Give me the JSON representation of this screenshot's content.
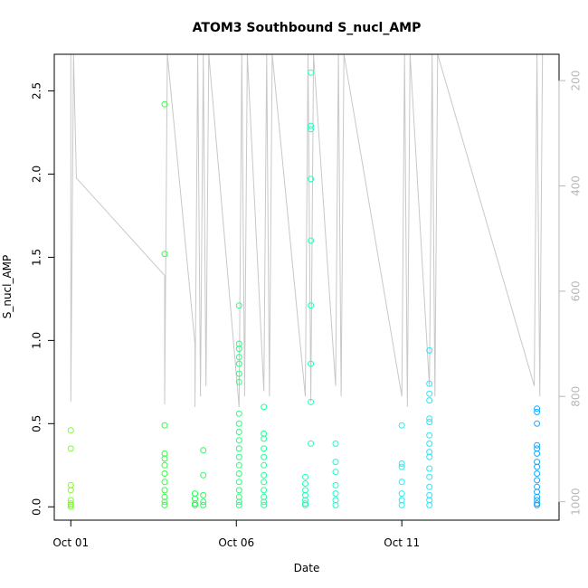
{
  "chart_data": {
    "type": "scatter",
    "title": "ATOM3 Southbound S_nucl_AMP",
    "xlabel": "Date",
    "ylabel": "S_nucl_AMP",
    "x_ticks": [
      {
        "date": "2016-10-01",
        "label": "Oct 01"
      },
      {
        "date": "2016-10-06",
        "label": "Oct 06"
      },
      {
        "date": "2016-10-11",
        "label": "Oct 11"
      }
    ],
    "xlim": [
      "2016-09-30T12:00",
      "2016-10-15T18:00"
    ],
    "ylim": [
      -0.08,
      2.72
    ],
    "y_ticks": [
      0.0,
      0.5,
      1.0,
      1.5,
      2.0,
      2.5
    ],
    "y_tick_labels": [
      "0.0",
      "0.5",
      "1.0",
      "1.5",
      "2.0",
      "2.5"
    ],
    "right_axis": {
      "label": "",
      "reversed": true,
      "ylim": [
        1035,
        150
      ],
      "ticks": [
        200,
        400,
        600,
        800,
        1000
      ],
      "tick_labels": [
        "200",
        "400",
        "600",
        "800",
        "1000"
      ],
      "color": "#b8b8b8"
    },
    "point_style": "open-circle",
    "line_color": "#c8c8c8",
    "color_gradient": [
      "#88ff22",
      "#22ff44",
      "#22ffbb",
      "#22e8ff",
      "#1199ff"
    ],
    "points": [
      {
        "t": "2016-10-01T00:00",
        "y": 0.46
      },
      {
        "t": "2016-10-01T00:00",
        "y": 0.35
      },
      {
        "t": "2016-10-01T00:00",
        "y": 0.13
      },
      {
        "t": "2016-10-01T00:00",
        "y": 0.1
      },
      {
        "t": "2016-10-01T00:00",
        "y": 0.04
      },
      {
        "t": "2016-10-01T00:00",
        "y": 0.02
      },
      {
        "t": "2016-10-01T00:00",
        "y": 0.01
      },
      {
        "t": "2016-10-01T00:00",
        "y": 0.0
      },
      {
        "t": "2016-10-03T20:00",
        "y": 2.42
      },
      {
        "t": "2016-10-03T20:00",
        "y": 1.52
      },
      {
        "t": "2016-10-03T20:00",
        "y": 0.49
      },
      {
        "t": "2016-10-03T20:00",
        "y": 0.32
      },
      {
        "t": "2016-10-03T20:00",
        "y": 0.29
      },
      {
        "t": "2016-10-03T20:00",
        "y": 0.25
      },
      {
        "t": "2016-10-03T20:00",
        "y": 0.2
      },
      {
        "t": "2016-10-03T20:00",
        "y": 0.15
      },
      {
        "t": "2016-10-03T20:00",
        "y": 0.1
      },
      {
        "t": "2016-10-03T20:00",
        "y": 0.06
      },
      {
        "t": "2016-10-03T20:00",
        "y": 0.03
      },
      {
        "t": "2016-10-03T20:00",
        "y": 0.01
      },
      {
        "t": "2016-10-04T18:00",
        "y": 0.08
      },
      {
        "t": "2016-10-04T18:00",
        "y": 0.05
      },
      {
        "t": "2016-10-04T18:00",
        "y": 0.02
      },
      {
        "t": "2016-10-04T18:00",
        "y": 0.01
      },
      {
        "t": "2016-10-05T00:00",
        "y": 0.34
      },
      {
        "t": "2016-10-05T00:00",
        "y": 0.19
      },
      {
        "t": "2016-10-05T00:00",
        "y": 0.07
      },
      {
        "t": "2016-10-05T00:00",
        "y": 0.03
      },
      {
        "t": "2016-10-05T00:00",
        "y": 0.01
      },
      {
        "t": "2016-10-06T02:00",
        "y": 1.21
      },
      {
        "t": "2016-10-06T02:00",
        "y": 0.98
      },
      {
        "t": "2016-10-06T02:00",
        "y": 0.95
      },
      {
        "t": "2016-10-06T02:00",
        "y": 0.9
      },
      {
        "t": "2016-10-06T02:00",
        "y": 0.86
      },
      {
        "t": "2016-10-06T02:00",
        "y": 0.8
      },
      {
        "t": "2016-10-06T02:00",
        "y": 0.75
      },
      {
        "t": "2016-10-06T02:00",
        "y": 0.56
      },
      {
        "t": "2016-10-06T02:00",
        "y": 0.5
      },
      {
        "t": "2016-10-06T02:00",
        "y": 0.45
      },
      {
        "t": "2016-10-06T02:00",
        "y": 0.4
      },
      {
        "t": "2016-10-06T02:00",
        "y": 0.35
      },
      {
        "t": "2016-10-06T02:00",
        "y": 0.3
      },
      {
        "t": "2016-10-06T02:00",
        "y": 0.25
      },
      {
        "t": "2016-10-06T02:00",
        "y": 0.2
      },
      {
        "t": "2016-10-06T02:00",
        "y": 0.15
      },
      {
        "t": "2016-10-06T02:00",
        "y": 0.1
      },
      {
        "t": "2016-10-06T02:00",
        "y": 0.06
      },
      {
        "t": "2016-10-06T02:00",
        "y": 0.03
      },
      {
        "t": "2016-10-06T02:00",
        "y": 0.01
      },
      {
        "t": "2016-10-06T20:00",
        "y": 0.6
      },
      {
        "t": "2016-10-06T20:00",
        "y": 0.44
      },
      {
        "t": "2016-10-06T20:00",
        "y": 0.41
      },
      {
        "t": "2016-10-06T20:00",
        "y": 0.35
      },
      {
        "t": "2016-10-06T20:00",
        "y": 0.3
      },
      {
        "t": "2016-10-06T20:00",
        "y": 0.25
      },
      {
        "t": "2016-10-06T20:00",
        "y": 0.19
      },
      {
        "t": "2016-10-06T20:00",
        "y": 0.15
      },
      {
        "t": "2016-10-06T20:00",
        "y": 0.1
      },
      {
        "t": "2016-10-06T20:00",
        "y": 0.06
      },
      {
        "t": "2016-10-06T20:00",
        "y": 0.03
      },
      {
        "t": "2016-10-06T20:00",
        "y": 0.01
      },
      {
        "t": "2016-10-08T02:00",
        "y": 0.18
      },
      {
        "t": "2016-10-08T02:00",
        "y": 0.14
      },
      {
        "t": "2016-10-08T02:00",
        "y": 0.1
      },
      {
        "t": "2016-10-08T02:00",
        "y": 0.07
      },
      {
        "t": "2016-10-08T02:00",
        "y": 0.04
      },
      {
        "t": "2016-10-08T02:00",
        "y": 0.02
      },
      {
        "t": "2016-10-08T02:00",
        "y": 0.01
      },
      {
        "t": "2016-10-08T06:00",
        "y": 2.61
      },
      {
        "t": "2016-10-08T06:00",
        "y": 2.29
      },
      {
        "t": "2016-10-08T06:00",
        "y": 2.27
      },
      {
        "t": "2016-10-08T06:00",
        "y": 1.97
      },
      {
        "t": "2016-10-08T06:00",
        "y": 1.6
      },
      {
        "t": "2016-10-08T06:00",
        "y": 1.21
      },
      {
        "t": "2016-10-08T06:00",
        "y": 0.86
      },
      {
        "t": "2016-10-08T06:00",
        "y": 0.63
      },
      {
        "t": "2016-10-08T06:00",
        "y": 0.38
      },
      {
        "t": "2016-10-09T00:00",
        "y": 0.38
      },
      {
        "t": "2016-10-09T00:00",
        "y": 0.27
      },
      {
        "t": "2016-10-09T00:00",
        "y": 0.21
      },
      {
        "t": "2016-10-09T00:00",
        "y": 0.13
      },
      {
        "t": "2016-10-09T00:00",
        "y": 0.08
      },
      {
        "t": "2016-10-09T00:00",
        "y": 0.04
      },
      {
        "t": "2016-10-09T00:00",
        "y": 0.01
      },
      {
        "t": "2016-10-11T00:00",
        "y": 0.49
      },
      {
        "t": "2016-10-11T00:00",
        "y": 0.26
      },
      {
        "t": "2016-10-11T00:00",
        "y": 0.24
      },
      {
        "t": "2016-10-11T00:00",
        "y": 0.15
      },
      {
        "t": "2016-10-11T00:00",
        "y": 0.08
      },
      {
        "t": "2016-10-11T00:00",
        "y": 0.04
      },
      {
        "t": "2016-10-11T00:00",
        "y": 0.01
      },
      {
        "t": "2016-10-11T20:00",
        "y": 0.94
      },
      {
        "t": "2016-10-11T20:00",
        "y": 0.74
      },
      {
        "t": "2016-10-11T20:00",
        "y": 0.68
      },
      {
        "t": "2016-10-11T20:00",
        "y": 0.64
      },
      {
        "t": "2016-10-11T20:00",
        "y": 0.53
      },
      {
        "t": "2016-10-11T20:00",
        "y": 0.51
      },
      {
        "t": "2016-10-11T20:00",
        "y": 0.43
      },
      {
        "t": "2016-10-11T20:00",
        "y": 0.38
      },
      {
        "t": "2016-10-11T20:00",
        "y": 0.33
      },
      {
        "t": "2016-10-11T20:00",
        "y": 0.3
      },
      {
        "t": "2016-10-11T20:00",
        "y": 0.23
      },
      {
        "t": "2016-10-11T20:00",
        "y": 0.18
      },
      {
        "t": "2016-10-11T20:00",
        "y": 0.12
      },
      {
        "t": "2016-10-11T20:00",
        "y": 0.07
      },
      {
        "t": "2016-10-11T20:00",
        "y": 0.04
      },
      {
        "t": "2016-10-11T20:00",
        "y": 0.01
      },
      {
        "t": "2016-10-15T02:00",
        "y": 0.59
      },
      {
        "t": "2016-10-15T02:00",
        "y": 0.57
      },
      {
        "t": "2016-10-15T02:00",
        "y": 0.5
      },
      {
        "t": "2016-10-15T02:00",
        "y": 0.37
      },
      {
        "t": "2016-10-15T02:00",
        "y": 0.35
      },
      {
        "t": "2016-10-15T02:00",
        "y": 0.32
      },
      {
        "t": "2016-10-15T02:00",
        "y": 0.27
      },
      {
        "t": "2016-10-15T02:00",
        "y": 0.24
      },
      {
        "t": "2016-10-15T02:00",
        "y": 0.2
      },
      {
        "t": "2016-10-15T02:00",
        "y": 0.16
      },
      {
        "t": "2016-10-15T02:00",
        "y": 0.12
      },
      {
        "t": "2016-10-15T02:00",
        "y": 0.09
      },
      {
        "t": "2016-10-15T02:00",
        "y": 0.06
      },
      {
        "t": "2016-10-15T02:00",
        "y": 0.04
      },
      {
        "t": "2016-10-15T02:00",
        "y": 0.02
      },
      {
        "t": "2016-10-15T02:00",
        "y": 0.01
      }
    ],
    "depth_trace": [
      {
        "t": "2016-10-01T00:00",
        "d": 150
      },
      {
        "t": "2016-10-01T00:00",
        "d": 810
      },
      {
        "t": "2016-10-01T02:00",
        "d": 150
      },
      {
        "t": "2016-10-01T04:00",
        "d": 385
      },
      {
        "t": "2016-10-03T20:00",
        "d": 570
      },
      {
        "t": "2016-10-03T20:00",
        "d": 815
      },
      {
        "t": "2016-10-03T22:00",
        "d": 150
      },
      {
        "t": "2016-10-04T18:00",
        "d": 700
      },
      {
        "t": "2016-10-04T18:00",
        "d": 820
      },
      {
        "t": "2016-10-04T20:00",
        "d": 150
      },
      {
        "t": "2016-10-04T22:00",
        "d": 800
      },
      {
        "t": "2016-10-05T00:00",
        "d": 150
      },
      {
        "t": "2016-10-05T02:00",
        "d": 780
      },
      {
        "t": "2016-10-05T04:00",
        "d": 150
      },
      {
        "t": "2016-10-06T02:00",
        "d": 820
      },
      {
        "t": "2016-10-06T04:00",
        "d": 150
      },
      {
        "t": "2016-10-06T06:00",
        "d": 800
      },
      {
        "t": "2016-10-06T08:00",
        "d": 150
      },
      {
        "t": "2016-10-06T20:00",
        "d": 790
      },
      {
        "t": "2016-10-06T22:00",
        "d": 150
      },
      {
        "t": "2016-10-07T00:00",
        "d": 800
      },
      {
        "t": "2016-10-07T02:00",
        "d": 150
      },
      {
        "t": "2016-10-08T02:00",
        "d": 800
      },
      {
        "t": "2016-10-08T04:00",
        "d": 150
      },
      {
        "t": "2016-10-08T06:00",
        "d": 810
      },
      {
        "t": "2016-10-08T08:00",
        "d": 150
      },
      {
        "t": "2016-10-09T00:00",
        "d": 780
      },
      {
        "t": "2016-10-09T02:00",
        "d": 150
      },
      {
        "t": "2016-10-09T04:00",
        "d": 800
      },
      {
        "t": "2016-10-09T06:00",
        "d": 150
      },
      {
        "t": "2016-10-11T00:00",
        "d": 800
      },
      {
        "t": "2016-10-11T02:00",
        "d": 150
      },
      {
        "t": "2016-10-11T04:00",
        "d": 820
      },
      {
        "t": "2016-10-11T06:00",
        "d": 150
      },
      {
        "t": "2016-10-11T20:00",
        "d": 780
      },
      {
        "t": "2016-10-11T22:00",
        "d": 150
      },
      {
        "t": "2016-10-12T00:00",
        "d": 800
      },
      {
        "t": "2016-10-12T02:00",
        "d": 150
      },
      {
        "t": "2016-10-15T00:00",
        "d": 780
      },
      {
        "t": "2016-10-15T02:00",
        "d": 150
      },
      {
        "t": "2016-10-15T04:00",
        "d": 800
      },
      {
        "t": "2016-10-15T06:00",
        "d": 150
      }
    ]
  }
}
